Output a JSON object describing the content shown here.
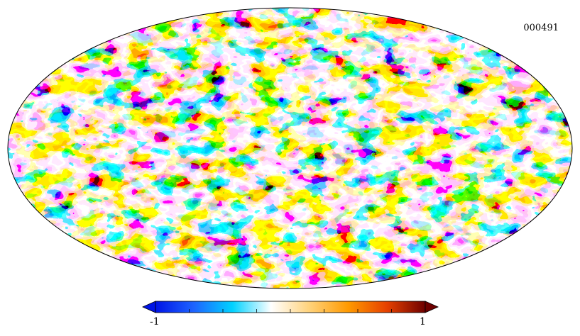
{
  "map": {
    "label": "000491",
    "projection": "mollweide",
    "colors": [
      "#0014e6",
      "#1e64ff",
      "#00d2ff",
      "#ffffff",
      "#ffd27a",
      "#ff9a00",
      "#e64100",
      "#6e0000"
    ]
  },
  "colorbar": {
    "min_label": "-1",
    "max_label": "1",
    "min": -1,
    "max": 1,
    "ticks": [
      -1,
      -0.75,
      -0.5,
      -0.25,
      0,
      0.25,
      0.5,
      0.75,
      1
    ]
  }
}
